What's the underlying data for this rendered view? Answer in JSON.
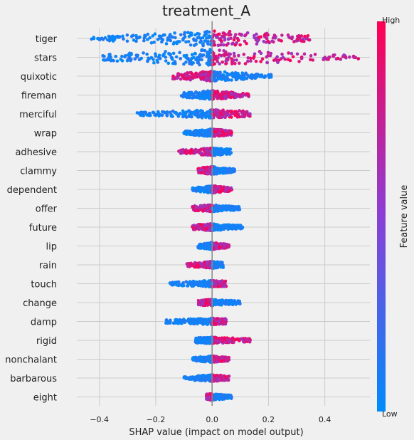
{
  "chart_data": {
    "type": "scatter",
    "subtype": "shap-beeswarm",
    "title": "treatment_A",
    "xlabel": "SHAP value (impact on model output)",
    "xlim": [
      -0.48,
      0.56
    ],
    "xticks": [
      -0.4,
      -0.2,
      0.0,
      0.2,
      0.4
    ],
    "xtick_labels": [
      "−0.4",
      "−0.2",
      "0.0",
      "0.2",
      "0.4"
    ],
    "grid": true,
    "colorbar": {
      "label": "Feature value",
      "high_label": "High",
      "low_label": "Low",
      "low_color": "#008bfb",
      "high_color": "#ff0052"
    },
    "features": [
      {
        "name": "tiger",
        "min": -0.43,
        "max": 0.35,
        "low_side": "neg",
        "spread": 1.0
      },
      {
        "name": "stars",
        "min": -0.4,
        "max": 0.53,
        "low_side": "neg",
        "spread": 1.0
      },
      {
        "name": "quixotic",
        "min": -0.14,
        "max": 0.21,
        "low_side": "pos",
        "spread": 0.55
      },
      {
        "name": "fireman",
        "min": -0.11,
        "max": 0.13,
        "low_side": "neg",
        "spread": 0.45
      },
      {
        "name": "merciful",
        "min": -0.27,
        "max": 0.14,
        "low_side": "neg",
        "spread": 0.4
      },
      {
        "name": "wrap",
        "min": -0.1,
        "max": 0.07,
        "low_side": "neg",
        "spread": 0.35
      },
      {
        "name": "adhesive",
        "min": -0.12,
        "max": 0.07,
        "low_side": "pos",
        "spread": 0.35
      },
      {
        "name": "clammy",
        "min": -0.05,
        "max": 0.08,
        "low_side": "pos",
        "spread": 0.35
      },
      {
        "name": "dependent",
        "min": -0.07,
        "max": 0.07,
        "low_side": "neg",
        "spread": 0.35
      },
      {
        "name": "offer",
        "min": -0.07,
        "max": 0.1,
        "low_side": "pos",
        "spread": 0.3
      },
      {
        "name": "future",
        "min": -0.07,
        "max": 0.11,
        "low_side": "pos",
        "spread": 0.3
      },
      {
        "name": "lip",
        "min": -0.05,
        "max": 0.06,
        "low_side": "neg",
        "spread": 0.3
      },
      {
        "name": "rain",
        "min": -0.09,
        "max": 0.04,
        "low_side": "pos",
        "spread": 0.3
      },
      {
        "name": "touch",
        "min": -0.15,
        "max": 0.05,
        "low_side": "neg",
        "spread": 0.25
      },
      {
        "name": "change",
        "min": -0.05,
        "max": 0.1,
        "low_side": "pos",
        "spread": 0.25
      },
      {
        "name": "damp",
        "min": -0.17,
        "max": 0.05,
        "low_side": "neg",
        "spread": 0.25
      },
      {
        "name": "rigid",
        "min": -0.06,
        "max": 0.14,
        "low_side": "neg",
        "spread": 0.25
      },
      {
        "name": "nonchalant",
        "min": -0.07,
        "max": 0.06,
        "low_side": "neg",
        "spread": 0.25
      },
      {
        "name": "barbarous",
        "min": -0.1,
        "max": 0.06,
        "low_side": "neg",
        "spread": 0.25
      },
      {
        "name": "eight",
        "min": -0.02,
        "max": 0.07,
        "low_side": "pos",
        "spread": 0.25
      }
    ]
  }
}
